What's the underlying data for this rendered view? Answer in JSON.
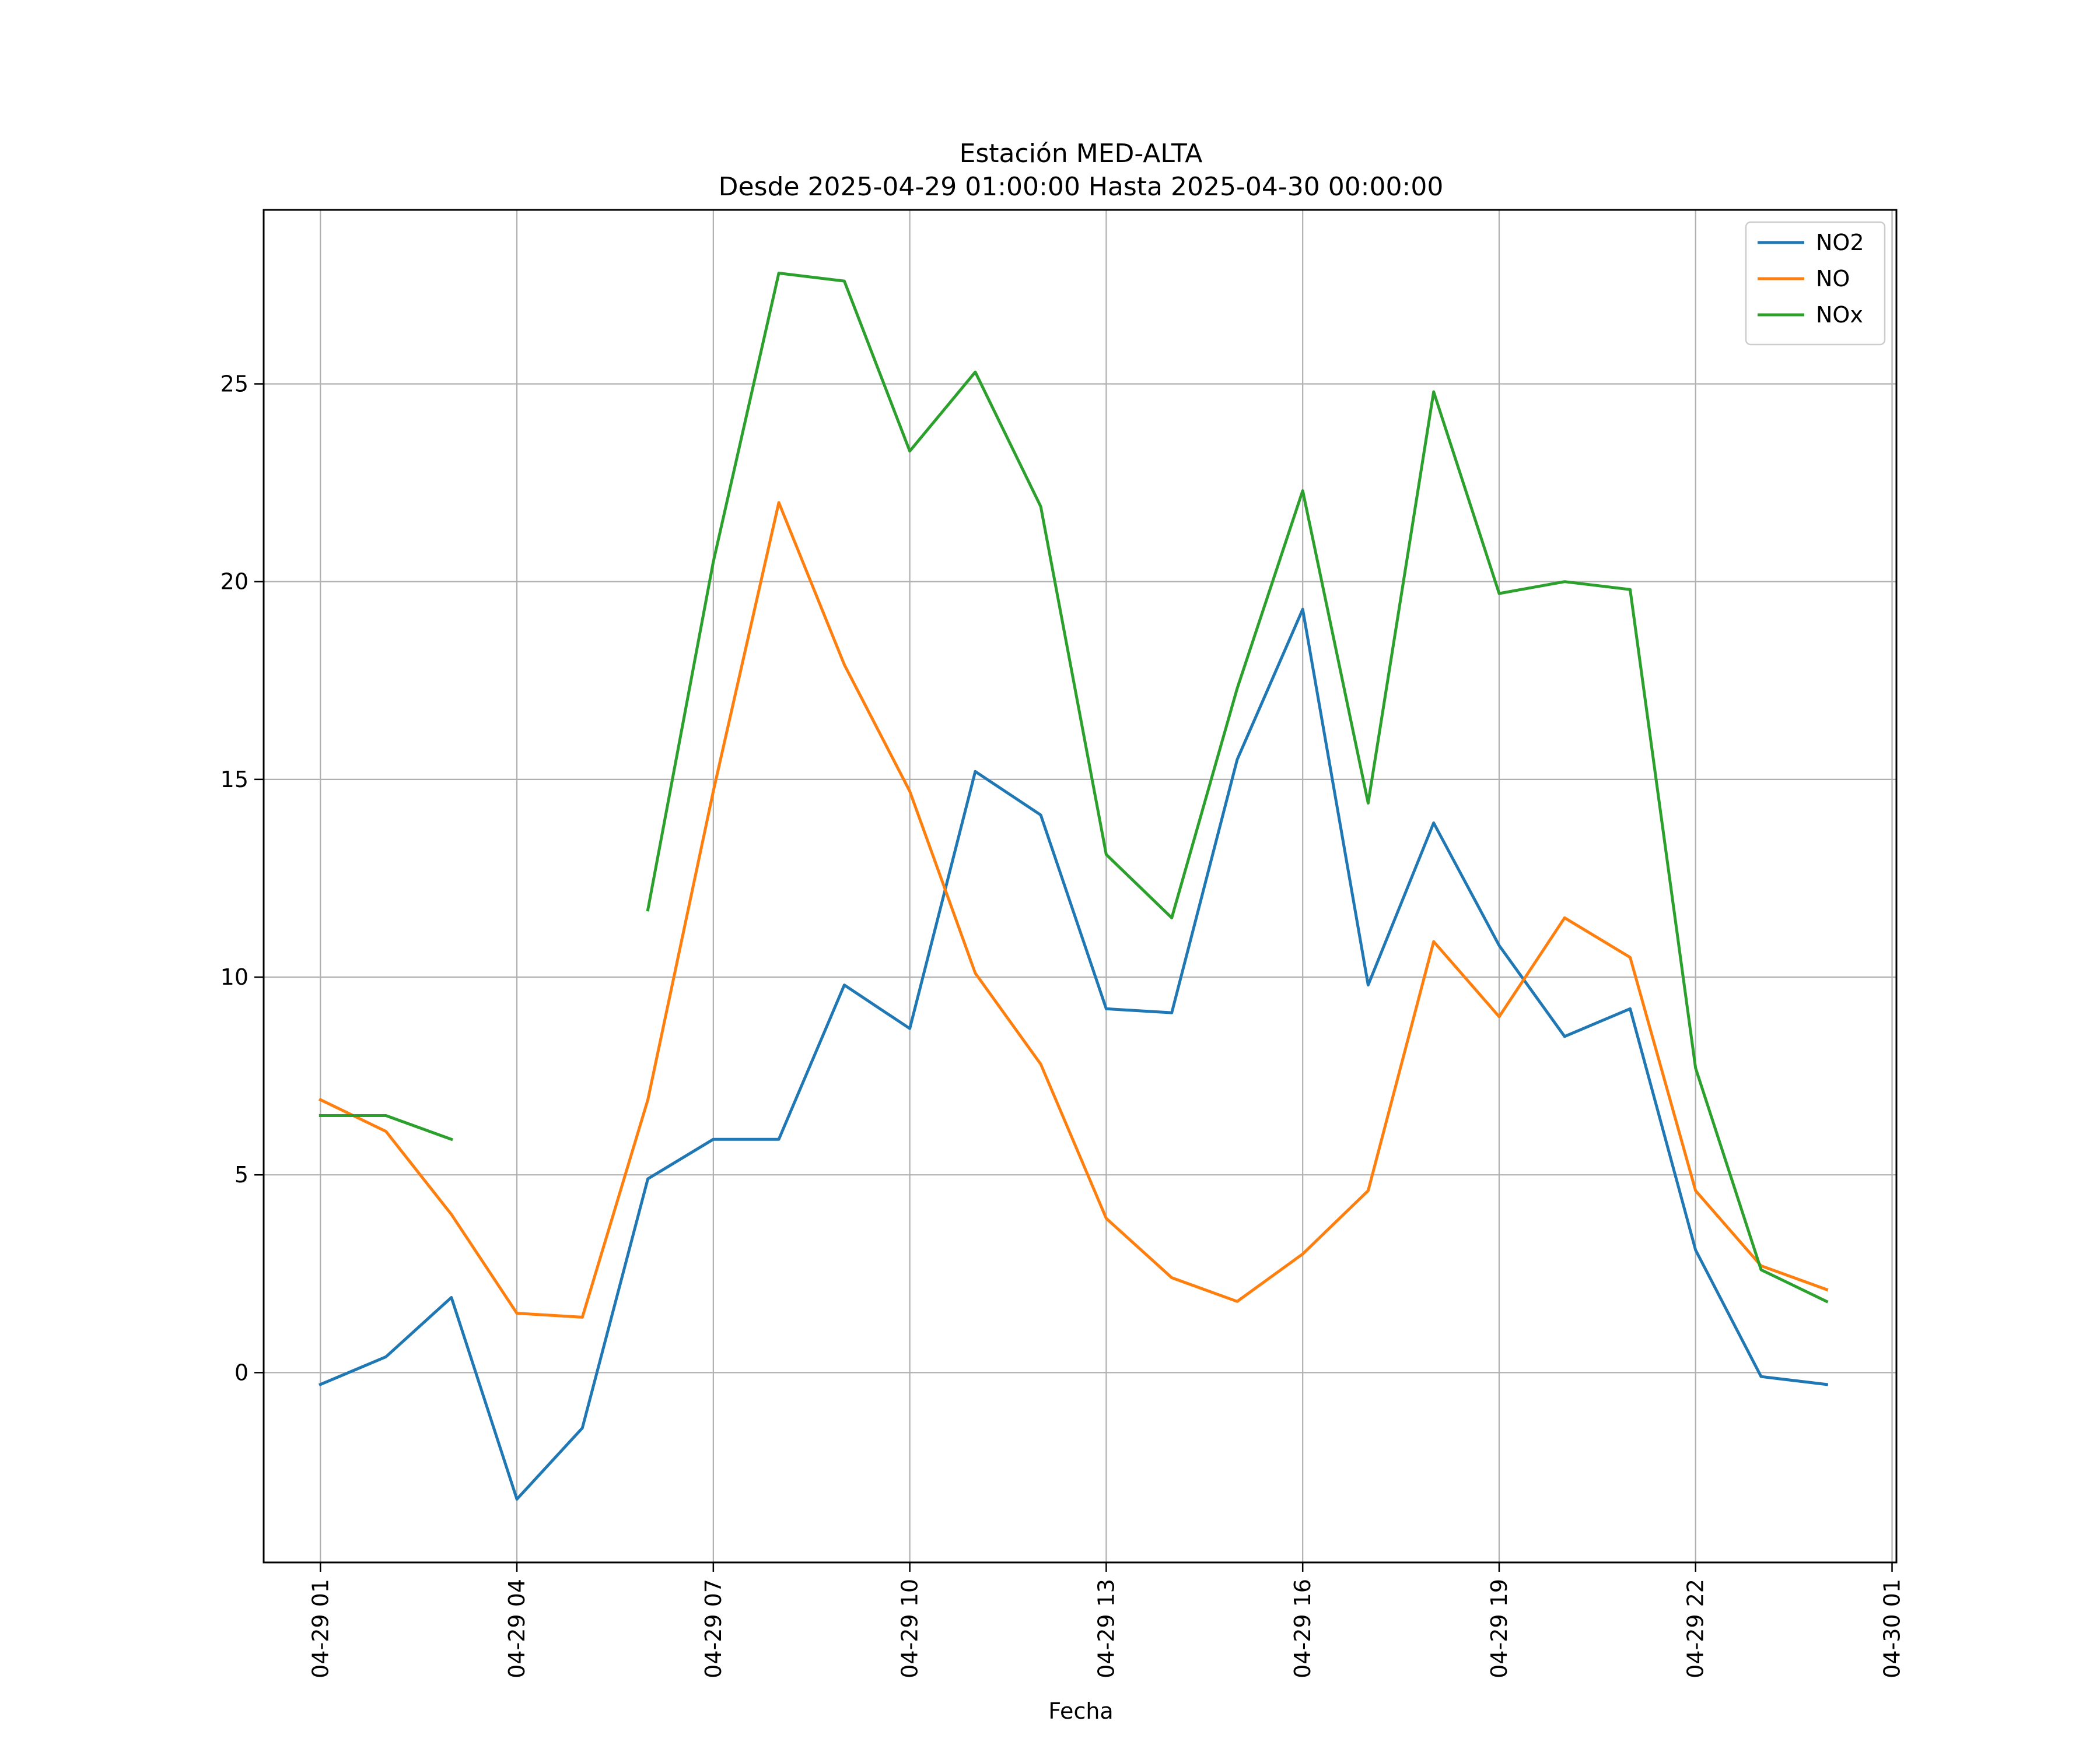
{
  "chart_data": {
    "type": "line",
    "title": "Estación MED-ALTA",
    "subtitle": "Desde 2025-04-29 01:00:00 Hasta 2025-04-30 00:00:00",
    "xlabel": "Fecha",
    "ylabel": "",
    "x": [
      "2025-04-29 01:00",
      "2025-04-29 02:00",
      "2025-04-29 03:00",
      "2025-04-29 04:00",
      "2025-04-29 05:00",
      "2025-04-29 06:00",
      "2025-04-29 07:00",
      "2025-04-29 08:00",
      "2025-04-29 09:00",
      "2025-04-29 10:00",
      "2025-04-29 11:00",
      "2025-04-29 12:00",
      "2025-04-29 13:00",
      "2025-04-29 14:00",
      "2025-04-29 15:00",
      "2025-04-29 16:00",
      "2025-04-29 17:00",
      "2025-04-29 18:00",
      "2025-04-29 19:00",
      "2025-04-29 20:00",
      "2025-04-29 21:00",
      "2025-04-29 22:00",
      "2025-04-29 23:00",
      "2025-04-30 00:00"
    ],
    "series": [
      {
        "name": "NO2",
        "color": "#1f77b4",
        "values": [
          -0.3,
          0.4,
          1.9,
          -3.2,
          -1.4,
          4.9,
          5.9,
          5.9,
          9.8,
          8.7,
          15.2,
          14.1,
          9.2,
          9.1,
          15.5,
          19.3,
          9.8,
          13.9,
          10.8,
          8.5,
          9.2,
          3.1,
          -0.1,
          -0.3
        ]
      },
      {
        "name": "NO",
        "color": "#ff7f0e",
        "values": [
          6.9,
          6.1,
          4.0,
          1.5,
          1.4,
          6.9,
          14.7,
          22.0,
          17.9,
          14.7,
          10.1,
          7.8,
          3.9,
          2.4,
          1.8,
          3.0,
          4.6,
          10.9,
          9.0,
          11.5,
          10.5,
          4.6,
          2.7,
          2.1
        ]
      },
      {
        "name": "NOx",
        "color": "#2ca02c",
        "values": [
          6.5,
          6.5,
          5.9,
          null,
          null,
          11.7,
          20.5,
          27.8,
          27.6,
          23.3,
          25.3,
          21.9,
          13.1,
          11.5,
          17.3,
          22.3,
          14.4,
          24.8,
          19.7,
          20.0,
          19.8,
          7.7,
          2.6,
          1.8
        ]
      }
    ],
    "xticks": [
      "04-29 01",
      "04-29 04",
      "04-29 07",
      "04-29 10",
      "04-29 13",
      "04-29 16",
      "04-29 19",
      "04-29 22",
      "04-30 01"
    ],
    "yticks": [
      0,
      5,
      10,
      15,
      20,
      25
    ],
    "ylim": [
      -4.8,
      29.4
    ],
    "xlim": [
      "2025-04-29 00:08",
      "2025-04-30 01:04"
    ],
    "grid": true,
    "legend_position": "top-right"
  }
}
